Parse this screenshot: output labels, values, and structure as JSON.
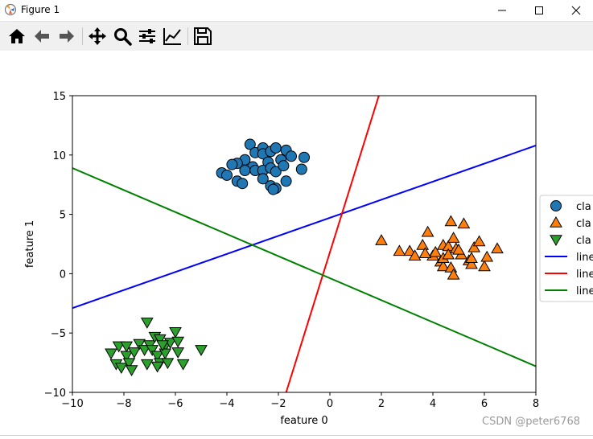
{
  "window": {
    "title": "Figure 1"
  },
  "toolbar": {
    "buttons": [
      {
        "name": "home-button",
        "icon": "home-icon"
      },
      {
        "name": "back-button",
        "icon": "arrow-left-icon"
      },
      {
        "name": "forward-button",
        "icon": "arrow-right-icon"
      },
      {
        "name": "pan-button",
        "icon": "move-icon"
      },
      {
        "name": "zoom-button",
        "icon": "magnifier-icon"
      },
      {
        "name": "subplots-button",
        "icon": "sliders-icon"
      },
      {
        "name": "axes-button",
        "icon": "trend-chart-icon"
      },
      {
        "name": "save-button",
        "icon": "floppy-disk-icon"
      }
    ]
  },
  "watermark": "CSDN @peter6768",
  "chart_data": {
    "type": "scatter",
    "xlabel": "feature 0",
    "ylabel": "feature 1",
    "xlim": [
      -10,
      8
    ],
    "ylim": [
      -10,
      15
    ],
    "xticks": [
      -10,
      -8,
      -6,
      -4,
      -2,
      0,
      2,
      4,
      6,
      8
    ],
    "yticks": [
      -10,
      -5,
      0,
      5,
      10,
      15
    ],
    "grid": false,
    "legend_position": "right, partially cut off",
    "legend": [
      "cla",
      "cla",
      "cla",
      "line",
      "line",
      "line"
    ],
    "series": [
      {
        "kind": "points",
        "marker": "circle",
        "color": "#1f77b4",
        "points": [
          [
            -3.1,
            10.9
          ],
          [
            -2.9,
            10.2
          ],
          [
            -2.6,
            10.6
          ],
          [
            -2.6,
            10.1
          ],
          [
            -2.3,
            10.3
          ],
          [
            -2.1,
            10.6
          ],
          [
            -1.7,
            10.4
          ],
          [
            -1.5,
            9.9
          ],
          [
            -1.0,
            9.8
          ],
          [
            -1.9,
            9.6
          ],
          [
            -2.4,
            9.4
          ],
          [
            -3.3,
            9.6
          ],
          [
            -3.6,
            9.3
          ],
          [
            -3.8,
            9.2
          ],
          [
            -3.0,
            9.0
          ],
          [
            -3.3,
            8.7
          ],
          [
            -2.9,
            8.7
          ],
          [
            -2.6,
            8.7
          ],
          [
            -2.3,
            8.9
          ],
          [
            -2.1,
            8.6
          ],
          [
            -1.8,
            9.1
          ],
          [
            -1.1,
            8.8
          ],
          [
            -4.2,
            8.5
          ],
          [
            -4.0,
            8.3
          ],
          [
            -3.6,
            7.8
          ],
          [
            -3.4,
            7.6
          ],
          [
            -2.6,
            8.0
          ],
          [
            -2.3,
            7.4
          ],
          [
            -2.1,
            7.2
          ],
          [
            -1.7,
            7.8
          ],
          [
            -2.2,
            7.1
          ]
        ]
      },
      {
        "kind": "points",
        "marker": "triangle-up",
        "color": "#ff7f0e",
        "points": [
          [
            2.0,
            2.8
          ],
          [
            2.7,
            1.9
          ],
          [
            3.1,
            1.9
          ],
          [
            3.3,
            1.5
          ],
          [
            3.6,
            2.4
          ],
          [
            3.8,
            3.5
          ],
          [
            4.0,
            1.5
          ],
          [
            4.1,
            1.8
          ],
          [
            4.4,
            2.4
          ],
          [
            4.6,
            2.3
          ],
          [
            4.7,
            4.4
          ],
          [
            4.8,
            3.0
          ],
          [
            4.9,
            2.1
          ],
          [
            5.1,
            1.6
          ],
          [
            5.2,
            4.2
          ],
          [
            4.3,
            1.0
          ],
          [
            4.4,
            0.6
          ],
          [
            4.7,
            0.5
          ],
          [
            4.4,
            1.3
          ],
          [
            4.6,
            1.6
          ],
          [
            4.8,
            -0.1
          ],
          [
            5.0,
            2.0
          ],
          [
            5.4,
            1.1
          ],
          [
            5.5,
            0.8
          ],
          [
            5.5,
            1.3
          ],
          [
            5.6,
            2.2
          ],
          [
            5.8,
            2.7
          ],
          [
            6.0,
            0.6
          ],
          [
            6.1,
            1.4
          ],
          [
            6.5,
            2.1
          ],
          [
            3.7,
            1.7
          ]
        ]
      },
      {
        "kind": "points",
        "marker": "triangle-down",
        "color": "#2ca02c",
        "points": [
          [
            -8.5,
            -6.7
          ],
          [
            -8.3,
            -7.6
          ],
          [
            -8.2,
            -6.1
          ],
          [
            -8.1,
            -7.9
          ],
          [
            -7.9,
            -6.1
          ],
          [
            -7.9,
            -6.9
          ],
          [
            -7.8,
            -7.5
          ],
          [
            -7.7,
            -8.1
          ],
          [
            -7.6,
            -6.6
          ],
          [
            -7.4,
            -5.9
          ],
          [
            -7.2,
            -6.4
          ],
          [
            -7.1,
            -4.1
          ],
          [
            -7.1,
            -7.6
          ],
          [
            -7.0,
            -6.0
          ],
          [
            -6.9,
            -6.4
          ],
          [
            -6.8,
            -5.3
          ],
          [
            -6.7,
            -6.9
          ],
          [
            -6.6,
            -7.5
          ],
          [
            -6.6,
            -5.5
          ],
          [
            -6.4,
            -6.1
          ],
          [
            -6.4,
            -6.7
          ],
          [
            -6.3,
            -7.5
          ],
          [
            -6.2,
            -5.8
          ],
          [
            -6.0,
            -4.9
          ],
          [
            -5.9,
            -5.7
          ],
          [
            -5.9,
            -6.6
          ],
          [
            -5.7,
            -7.6
          ],
          [
            -5.0,
            -6.4
          ],
          [
            -6.7,
            -7.8
          ],
          [
            -6.5,
            -6.0
          ]
        ]
      },
      {
        "kind": "line",
        "color": "#0000ff",
        "x": [
          -10,
          8
        ],
        "y": [
          -2.9,
          10.8
        ]
      },
      {
        "kind": "line",
        "color": "#ff0000",
        "x": [
          -1.7,
          1.9
        ],
        "y": [
          -10,
          15
        ]
      },
      {
        "kind": "line",
        "color": "#008000",
        "x": [
          -10,
          8
        ],
        "y": [
          8.9,
          -7.8
        ]
      }
    ]
  }
}
